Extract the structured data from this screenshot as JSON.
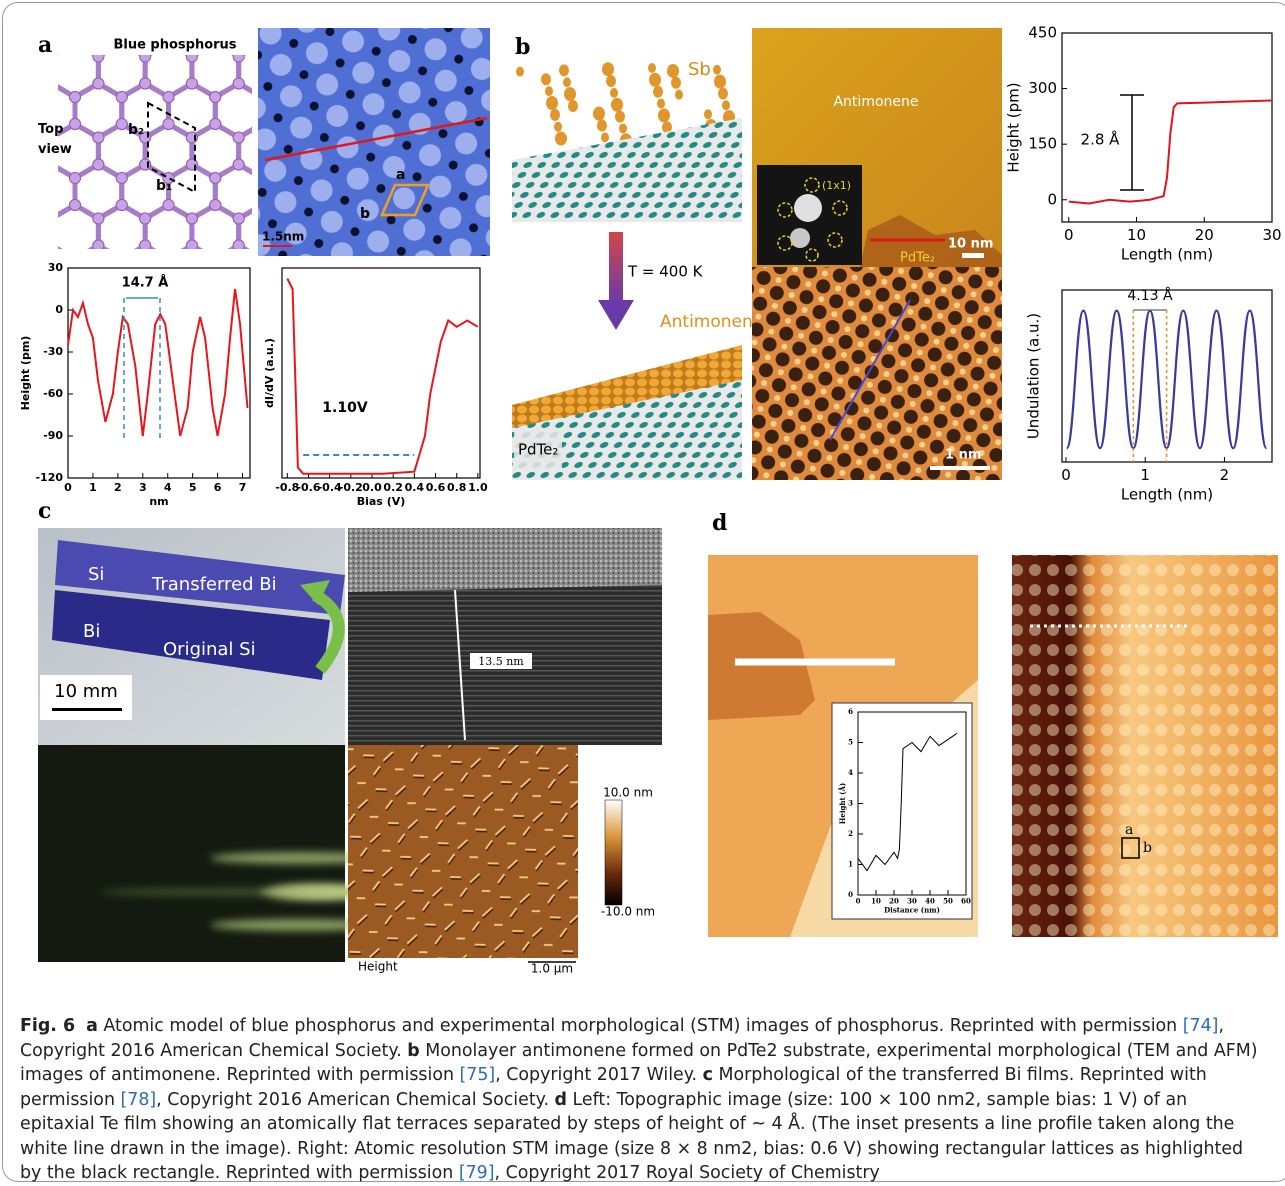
{
  "panel_a": {
    "label": "a",
    "model_title": "Blue phosphorus",
    "model_view": "Top view",
    "vector_b2": "b₂",
    "vector_b1": "b₁",
    "stm_vector_a": "a",
    "stm_vector_b": "b",
    "stm_scale": "1.5nm",
    "height_profile": {
      "type": "line",
      "x": [
        0,
        0.2,
        0.4,
        0.6,
        0.8,
        1.0,
        1.2,
        1.5,
        1.8,
        2.0,
        2.2,
        2.4,
        2.7,
        3.0,
        3.2,
        3.5,
        3.7,
        3.9,
        4.2,
        4.5,
        4.8,
        5.0,
        5.3,
        5.5,
        5.8,
        6.0,
        6.3,
        6.5,
        6.7,
        6.9,
        7.2
      ],
      "values": [
        -25,
        0,
        -5,
        5,
        -10,
        -20,
        -50,
        -80,
        -60,
        -30,
        -5,
        -10,
        -40,
        -90,
        -60,
        -10,
        -3,
        -10,
        -50,
        -90,
        -70,
        -30,
        -5,
        -20,
        -70,
        -90,
        -60,
        -20,
        15,
        -10,
        -70
      ],
      "xlim": [
        0,
        7.3
      ],
      "ylim": [
        -120,
        30
      ],
      "xticks": [
        0,
        1,
        2,
        3,
        4,
        5,
        6,
        7
      ],
      "yticks": [
        -120,
        -90,
        -60,
        -30,
        0,
        30
      ],
      "xlabel": "nm",
      "ylabel": "Height (pm)",
      "annotation": "14.7 Å",
      "color": "#e8161b"
    },
    "didv": {
      "type": "line",
      "x": [
        -0.8,
        -0.75,
        -0.72,
        -0.7,
        -0.65,
        -0.5,
        -0.2,
        0.1,
        0.4,
        0.5,
        0.55,
        0.65,
        0.72,
        0.8,
        0.9,
        1.0
      ],
      "values": [
        0.95,
        0.9,
        0.4,
        0.05,
        0.02,
        0.02,
        0.02,
        0.02,
        0.03,
        0.2,
        0.4,
        0.65,
        0.75,
        0.72,
        0.75,
        0.72
      ],
      "xlim": [
        -0.85,
        1.02
      ],
      "ylim": [
        0,
        1
      ],
      "xticks": [
        -0.8,
        -0.6,
        -0.4,
        -0.2,
        {
          "value": 0,
          "label": "0.0"
        },
        0.2,
        0.4,
        0.6,
        0.8,
        {
          "value": 1,
          "label": "1.0"
        }
      ],
      "xlabel": "Bias (V)",
      "ylabel": "dI/dV (a.u.)",
      "annotation": "1.10V",
      "color": "#e8161b"
    }
  },
  "panel_b": {
    "label": "b",
    "sb": "Sb",
    "temperature": "T = 400 K",
    "antimonene_model": "Antimonene",
    "substrate_model": "PdTe₂",
    "stm_title": "Antimonene",
    "leed": "(1x1)",
    "stm_substrate": "PdTe₂",
    "stm_scale": "10 nm",
    "atomic_scale": "1 nm",
    "height_profile": {
      "type": "line",
      "x": [
        0,
        3,
        6,
        9,
        12,
        14,
        14.5,
        15,
        15.5,
        16,
        20,
        25,
        30
      ],
      "values": [
        -5,
        -10,
        0,
        -5,
        0,
        10,
        60,
        180,
        250,
        260,
        262,
        265,
        268
      ],
      "xlim": [
        -1,
        30
      ],
      "ylim": [
        -60,
        450
      ],
      "xticks": [
        0,
        10,
        20,
        30
      ],
      "yticks": [
        0,
        150,
        300,
        450
      ],
      "xlabel": "Length (nm)",
      "ylabel": "Height (pm)",
      "annotation": "2.8 Å",
      "color": "#e0141d"
    },
    "undulation": {
      "type": "line",
      "x": [
        0.01,
        0.22,
        0.43,
        0.64,
        0.85,
        1.06,
        1.27,
        1.48,
        1.69,
        1.9,
        2.11,
        2.32,
        2.53
      ],
      "values": [
        0,
        1,
        0,
        1,
        0,
        1,
        0,
        1,
        0,
        1,
        0,
        1,
        0
      ],
      "xlim": [
        -0.05,
        2.6
      ],
      "ylim": [
        -0.1,
        1.15
      ],
      "xticks": [
        0,
        1,
        2
      ],
      "xlabel": "Length (nm)",
      "ylabel": "Undulation (a.u.)",
      "annotation": "4.13 Å",
      "color": "#3a3a9c"
    }
  },
  "panel_c": {
    "label": "c",
    "chip_top_left": "Si",
    "chip_top": "Transferred Bi",
    "chip_bottom_left": "Bi",
    "chip_bottom": "Original Si",
    "photo_scale": "10 mm",
    "tem_scale": "13.5 nm",
    "afm_channel": "Height",
    "afm_scale": "1.0 µm",
    "colorbar_max": "10.0 nm",
    "colorbar_min": "-10.0 nm"
  },
  "panel_d": {
    "label": "d",
    "lattice_a": "a",
    "lattice_b": "b",
    "inset_profile": {
      "type": "line",
      "x": [
        0,
        5,
        10,
        15,
        20,
        22,
        23,
        24,
        25,
        30,
        35,
        40,
        45,
        50,
        55
      ],
      "values": [
        1.2,
        0.8,
        1.3,
        1.0,
        1.4,
        1.2,
        1.5,
        3.0,
        4.8,
        5.0,
        4.7,
        5.2,
        4.9,
        5.1,
        5.3
      ],
      "xlim": [
        0,
        60
      ],
      "ylim": [
        0,
        6
      ],
      "xticks": [
        0,
        10,
        20,
        30,
        40,
        50,
        60
      ],
      "yticks": [
        0,
        1,
        2,
        3,
        4,
        5,
        6
      ],
      "xlabel": "Distance (nm)",
      "ylabel": "Height (Å)",
      "color": "#000000"
    }
  },
  "caption": {
    "figure": "Fig. 6",
    "parts": [
      {
        "label": "a",
        "text": "Atomic model of blue phosphorus and experimental morphological (STM) images of phosphorus. Reprinted with permission ",
        "ref": "[74]",
        "after": ", Copyright 2016 American Chemical Society."
      },
      {
        "label": "b",
        "text": "Monolayer antimonene formed on PdTe2 substrate, experimental morphological (TEM and AFM) images of antimonene. Reprinted with permission ",
        "ref": "[75]",
        "after": ", Copyright 2017 Wiley."
      },
      {
        "label": "c",
        "text": "Morphological of the transferred Bi films. Reprinted with permission ",
        "ref": "[78]",
        "after": ", Copyright 2016 American Chemical Society."
      },
      {
        "label": "d",
        "text": "Left: Topographic image (size: 100 × 100 nm2, sample bias: 1 V) of an epitaxial Te film showing an atomically flat terraces separated by steps of height of ~ 4 Å. (The inset presents a line profile taken along the white line drawn in the image). Right: Atomic resolution STM image (size 8 × 8 nm2, bias: 0.6 V) showing rectangular lattices as highlighted by the black rectangle. Reprinted with permission ",
        "ref": "[79]",
        "after": ", Copyright 2017 Royal Society of Chemistry"
      }
    ]
  }
}
